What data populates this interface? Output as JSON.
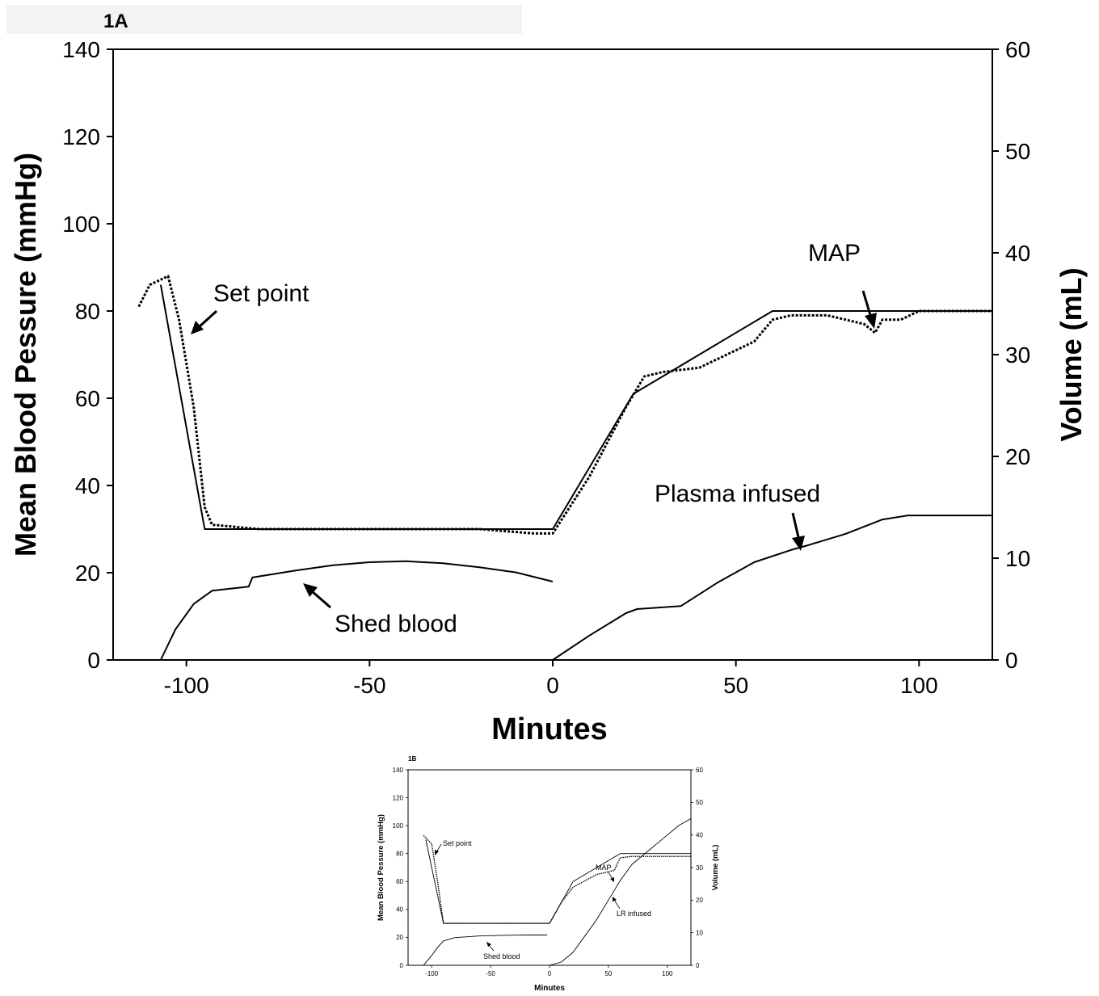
{
  "chart_data": [
    {
      "type": "line",
      "panel_label": "1A",
      "xlabel": "Minutes",
      "ylabel_left": "Mean Blood Pessure (mmHg)",
      "ylabel_right": "Volume (mL)",
      "xlim": [
        -120,
        120
      ],
      "ylim_left": [
        0,
        140
      ],
      "ylim_right": [
        0,
        60
      ],
      "xticks": [
        -100,
        -50,
        0,
        50,
        100
      ],
      "yticks_left": [
        0,
        20,
        40,
        60,
        80,
        100,
        120,
        140
      ],
      "yticks_right": [
        0,
        10,
        20,
        30,
        40,
        50,
        60
      ],
      "grid": false,
      "legend": "none",
      "series": [
        {
          "name": "Set point",
          "axis": "left",
          "x": [
            -107,
            -95,
            0,
            22,
            60,
            120
          ],
          "y": [
            86,
            30,
            30,
            61,
            80,
            80
          ]
        },
        {
          "name": "MAP",
          "axis": "left",
          "x": [
            -113,
            -110,
            -105,
            -102,
            -98,
            -95,
            -93,
            -80,
            -60,
            -40,
            -20,
            -5,
            0,
            10,
            20,
            25,
            30,
            40,
            50,
            55,
            60,
            65,
            70,
            75,
            80,
            85,
            88,
            90,
            95,
            100,
            110,
            120
          ],
          "y": [
            81,
            86,
            88,
            78,
            58,
            35,
            31,
            30,
            30,
            30,
            30,
            29,
            29,
            42,
            58,
            65,
            66,
            67,
            71,
            73,
            78,
            79,
            79,
            79,
            78,
            77,
            75,
            78,
            78,
            80,
            80,
            80
          ]
        },
        {
          "name": "Shed blood",
          "axis": "right",
          "x": [
            -107,
            -103,
            -98,
            -93,
            -83,
            -82,
            -70,
            -60,
            -50,
            -40,
            -30,
            -20,
            -10,
            0
          ],
          "y": [
            0,
            3,
            5.5,
            6.8,
            7.2,
            8.1,
            8.8,
            9.3,
            9.6,
            9.7,
            9.5,
            9.1,
            8.6,
            7.7
          ]
        },
        {
          "name": "Plasma infused",
          "axis": "right",
          "x": [
            0,
            10,
            20,
            23,
            35,
            45,
            55,
            65,
            70,
            80,
            90,
            97,
            120
          ],
          "y": [
            0,
            2.4,
            4.6,
            5,
            5.3,
            7.6,
            9.6,
            10.8,
            11.3,
            12.4,
            13.8,
            14.2,
            14.2
          ]
        }
      ],
      "annotations": [
        "Set point",
        "MAP",
        "Plasma infused",
        "Shed blood"
      ]
    },
    {
      "type": "line",
      "panel_label": "1B",
      "xlabel": "Minutes",
      "ylabel_left": "Mean Blood Pessure (mmHg)",
      "ylabel_right": "Volume (mL)",
      "xlim": [
        -120,
        120
      ],
      "ylim_left": [
        0,
        140
      ],
      "ylim_right": [
        0,
        60
      ],
      "xticks": [
        -100,
        -50,
        0,
        50,
        100
      ],
      "yticks_left": [
        0,
        20,
        40,
        60,
        80,
        100,
        120,
        140
      ],
      "yticks_right": [
        0,
        10,
        20,
        30,
        40,
        50,
        60
      ],
      "grid": false,
      "legend": "none",
      "series": [
        {
          "name": "Set point",
          "axis": "left",
          "x": [
            -105,
            -90,
            0,
            20,
            60,
            120
          ],
          "y": [
            90,
            30,
            30,
            60,
            80,
            80
          ]
        },
        {
          "name": "MAP",
          "axis": "left",
          "x": [
            -107,
            -100,
            -95,
            -90,
            -60,
            -30,
            -5,
            0,
            10,
            20,
            40,
            55,
            60,
            70,
            90,
            120
          ],
          "y": [
            93,
            87,
            60,
            30,
            30,
            30,
            30,
            30,
            45,
            56,
            65,
            68,
            77,
            78,
            78,
            78
          ]
        },
        {
          "name": "Shed blood",
          "axis": "right",
          "x": [
            -107,
            -100,
            -95,
            -90,
            -80,
            -60,
            -40,
            -20,
            -2
          ],
          "y": [
            0,
            3,
            5.5,
            7.5,
            8.5,
            9,
            9.2,
            9.3,
            9.3
          ]
        },
        {
          "name": "LR infused",
          "axis": "right",
          "x": [
            0,
            10,
            20,
            30,
            40,
            50,
            60,
            70,
            80,
            90,
            100,
            110,
            120
          ],
          "y": [
            0,
            1,
            4,
            9,
            14,
            20,
            26,
            31,
            34,
            37,
            40,
            43,
            45
          ]
        }
      ],
      "annotations": [
        "Set point",
        "MAP",
        "LR infused",
        "Shed blood"
      ]
    }
  ]
}
